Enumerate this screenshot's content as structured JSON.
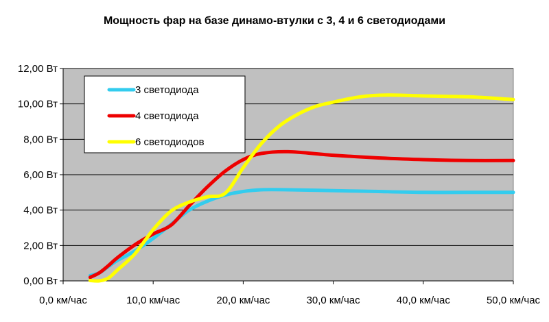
{
  "chart_data": {
    "type": "line",
    "title": "Мощность фар на базе динамо-втулки с 3, 4 и 6 светодиодами",
    "xlabel": "",
    "ylabel": "",
    "xlim": [
      0,
      50
    ],
    "ylim": [
      0,
      12
    ],
    "x_ticks": [
      0,
      10,
      20,
      30,
      40,
      50
    ],
    "x_tick_labels": [
      "0,0 км/час",
      "10,0 км/час",
      "20,0 км/час",
      "30,0 км/час",
      "40,0 км/час",
      "50,0 км/час"
    ],
    "y_ticks": [
      0,
      2,
      4,
      6,
      8,
      10,
      12
    ],
    "y_tick_labels": [
      "0,00 Вт",
      "2,00 Вт",
      "4,00 Вт",
      "6,00 Вт",
      "8,00 Вт",
      "10,00 Вт",
      "12,00 Вт"
    ],
    "grid": "horizontal",
    "legend_position": "top-left",
    "plot_background": "#c0c0c0",
    "series": [
      {
        "name": "3 светодиода",
        "color": "#33ccee",
        "points": [
          [
            3,
            0.3
          ],
          [
            4,
            0.45
          ],
          [
            5,
            0.8
          ],
          [
            6,
            1.15
          ],
          [
            8,
            1.7
          ],
          [
            10,
            2.4
          ],
          [
            12,
            3.2
          ],
          [
            14,
            4.0
          ],
          [
            16,
            4.5
          ],
          [
            18,
            4.85
          ],
          [
            20,
            5.05
          ],
          [
            22,
            5.15
          ],
          [
            25,
            5.15
          ],
          [
            30,
            5.1
          ],
          [
            35,
            5.05
          ],
          [
            40,
            5.0
          ],
          [
            45,
            5.0
          ],
          [
            50,
            5.0
          ]
        ]
      },
      {
        "name": "4 светодиода",
        "color": "#ee0000",
        "points": [
          [
            3,
            0.2
          ],
          [
            4,
            0.45
          ],
          [
            5,
            0.85
          ],
          [
            6,
            1.3
          ],
          [
            8,
            2.05
          ],
          [
            10,
            2.65
          ],
          [
            12,
            3.15
          ],
          [
            14,
            4.25
          ],
          [
            16,
            5.3
          ],
          [
            18,
            6.2
          ],
          [
            20,
            6.85
          ],
          [
            22,
            7.2
          ],
          [
            25,
            7.3
          ],
          [
            30,
            7.1
          ],
          [
            35,
            6.95
          ],
          [
            40,
            6.85
          ],
          [
            45,
            6.8
          ],
          [
            50,
            6.8
          ]
        ]
      },
      {
        "name": "6 светодиодов",
        "color": "#ffff00",
        "points": [
          [
            3,
            0.02
          ],
          [
            4,
            0.0
          ],
          [
            5,
            0.15
          ],
          [
            6,
            0.6
          ],
          [
            8,
            1.55
          ],
          [
            10,
            2.9
          ],
          [
            12,
            3.95
          ],
          [
            14,
            4.45
          ],
          [
            16,
            4.75
          ],
          [
            18,
            4.95
          ],
          [
            20,
            6.4
          ],
          [
            22,
            7.75
          ],
          [
            24,
            8.75
          ],
          [
            26,
            9.4
          ],
          [
            28,
            9.85
          ],
          [
            30,
            10.1
          ],
          [
            33,
            10.4
          ],
          [
            36,
            10.5
          ],
          [
            40,
            10.45
          ],
          [
            45,
            10.4
          ],
          [
            50,
            10.25
          ]
        ]
      }
    ]
  }
}
